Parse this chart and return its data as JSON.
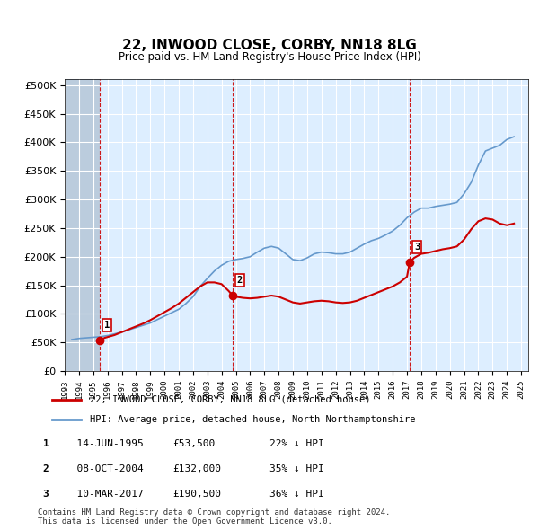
{
  "title": "22, INWOOD CLOSE, CORBY, NN18 8LG",
  "subtitle": "Price paid vs. HM Land Registry's House Price Index (HPI)",
  "legend_label_red": "22, INWOOD CLOSE, CORBY, NN18 8LG (detached house)",
  "legend_label_blue": "HPI: Average price, detached house, North Northamptonshire",
  "footer": "Contains HM Land Registry data © Crown copyright and database right 2024.\nThis data is licensed under the Open Government Licence v3.0.",
  "transactions": [
    {
      "num": 1,
      "date": "14-JUN-1995",
      "price": 53500,
      "hpi_pct": "22% ↓ HPI",
      "x_year": 1995.45
    },
    {
      "num": 2,
      "date": "08-OCT-2004",
      "price": 132000,
      "hpi_pct": "35% ↓ HPI",
      "x_year": 2004.77
    },
    {
      "num": 3,
      "date": "10-MAR-2017",
      "price": 190500,
      "hpi_pct": "36% ↓ HPI",
      "x_year": 2017.19
    }
  ],
  "hpi_line_color": "#6699cc",
  "price_line_color": "#cc0000",
  "vline_color": "#cc0000",
  "background_color": "#ffffff",
  "plot_bg_color": "#ddeeff",
  "hatch_color": "#bbccdd",
  "grid_color": "#ffffff",
  "xlim": [
    1993,
    2025.5
  ],
  "ylim": [
    0,
    510000
  ],
  "yticks": [
    0,
    50000,
    100000,
    150000,
    200000,
    250000,
    300000,
    350000,
    400000,
    450000,
    500000
  ],
  "ytick_labels": [
    "£0",
    "£50K",
    "£100K",
    "£150K",
    "£200K",
    "£250K",
    "£300K",
    "£350K",
    "£400K",
    "£450K",
    "£500K"
  ],
  "hpi_data": {
    "years": [
      1993.5,
      1994.0,
      1994.5,
      1995.0,
      1995.5,
      1996.0,
      1996.5,
      1997.0,
      1997.5,
      1998.0,
      1998.5,
      1999.0,
      1999.5,
      2000.0,
      2000.5,
      2001.0,
      2001.5,
      2002.0,
      2002.5,
      2003.0,
      2003.5,
      2004.0,
      2004.5,
      2005.0,
      2005.5,
      2006.0,
      2006.5,
      2007.0,
      2007.5,
      2008.0,
      2008.5,
      2009.0,
      2009.5,
      2010.0,
      2010.5,
      2011.0,
      2011.5,
      2012.0,
      2012.5,
      2013.0,
      2013.5,
      2014.0,
      2014.5,
      2015.0,
      2015.5,
      2016.0,
      2016.5,
      2017.0,
      2017.5,
      2018.0,
      2018.5,
      2019.0,
      2019.5,
      2020.0,
      2020.5,
      2021.0,
      2021.5,
      2022.0,
      2022.5,
      2023.0,
      2023.5,
      2024.0,
      2024.5
    ],
    "values": [
      55000,
      57000,
      58000,
      59000,
      60000,
      62000,
      65000,
      68000,
      72000,
      76000,
      80000,
      84000,
      90000,
      96000,
      102000,
      108000,
      118000,
      130000,
      148000,
      162000,
      175000,
      185000,
      192000,
      195000,
      197000,
      200000,
      208000,
      215000,
      218000,
      215000,
      205000,
      195000,
      193000,
      198000,
      205000,
      208000,
      207000,
      205000,
      205000,
      208000,
      215000,
      222000,
      228000,
      232000,
      238000,
      245000,
      255000,
      268000,
      278000,
      285000,
      285000,
      288000,
      290000,
      292000,
      295000,
      310000,
      330000,
      360000,
      385000,
      390000,
      395000,
      405000,
      410000
    ]
  },
  "price_data": {
    "years": [
      1993.5,
      1994.0,
      1994.5,
      1995.45,
      1995.8,
      1996.5,
      1997.0,
      1997.5,
      1998.0,
      1998.5,
      1999.0,
      1999.5,
      2000.0,
      2000.5,
      2001.0,
      2001.5,
      2002.0,
      2002.5,
      2003.0,
      2003.5,
      2004.0,
      2004.5,
      2004.77,
      2005.0,
      2005.5,
      2006.0,
      2006.5,
      2007.0,
      2007.5,
      2008.0,
      2008.5,
      2009.0,
      2009.5,
      2010.0,
      2010.5,
      2011.0,
      2011.5,
      2012.0,
      2012.5,
      2013.0,
      2013.5,
      2014.0,
      2014.5,
      2015.0,
      2015.5,
      2016.0,
      2016.5,
      2017.0,
      2017.19,
      2017.5,
      2018.0,
      2018.5,
      2019.0,
      2019.5,
      2020.0,
      2020.5,
      2021.0,
      2021.5,
      2022.0,
      2022.5,
      2023.0,
      2023.5,
      2024.0,
      2024.5
    ],
    "values": [
      null,
      null,
      null,
      53500,
      58000,
      63000,
      68000,
      73000,
      78000,
      83000,
      89000,
      96000,
      103000,
      110000,
      118000,
      128000,
      138000,
      148000,
      155000,
      155000,
      152000,
      140000,
      132000,
      130000,
      128000,
      127000,
      128000,
      130000,
      132000,
      130000,
      125000,
      120000,
      118000,
      120000,
      122000,
      123000,
      122000,
      120000,
      119000,
      120000,
      123000,
      128000,
      133000,
      138000,
      143000,
      148000,
      155000,
      165000,
      190500,
      198000,
      205000,
      207000,
      210000,
      213000,
      215000,
      218000,
      230000,
      248000,
      262000,
      267000,
      265000,
      258000,
      255000,
      258000
    ]
  }
}
